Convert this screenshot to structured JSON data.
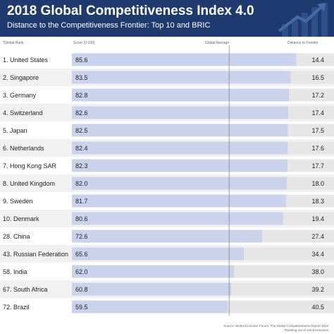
{
  "header": {
    "title": "2018 Global Competitiveness Index 4.0",
    "subtitle": "Distance to the Competitiveness Frontier: Top 10 and BRIC"
  },
  "columns": {
    "rank": "*Global Rank",
    "score": "Score (0-100)",
    "average": "Global Average",
    "distance": "Distance to Frontier"
  },
  "footer": {
    "source": "Source: World Economic Forum, The Global Competitiveness Report 2018",
    "note": "*Ranking out of 140 Economies"
  },
  "colors": {
    "header_bg": "#1e3a6e",
    "score_bar": "#c9d4ec",
    "distance_bar": "#e6e6e6",
    "row_alt": "#f1f1f1"
  },
  "chart_data": {
    "type": "bar",
    "orientation": "horizontal",
    "stacked": true,
    "xlim": [
      0,
      100
    ],
    "global_average": 60.0,
    "categories": [
      "1. United States",
      "2. Singapore",
      "3. Germany",
      "4. Switzerland",
      "5. Japan",
      "6. Netherlands",
      "7. Hong Kong SAR",
      "8. United Kingdom",
      "9. Sweden",
      "10. Denmark",
      "28. China",
      "43. Russian Federation",
      "58. India",
      "67. South Africa",
      "72. Brazil"
    ],
    "series": [
      {
        "name": "Score (0-100)",
        "values": [
          85.6,
          83.5,
          82.8,
          82.6,
          82.5,
          82.4,
          82.3,
          82.0,
          81.7,
          80.6,
          72.6,
          65.6,
          62.0,
          60.8,
          59.5
        ]
      },
      {
        "name": "Distance to Frontier",
        "values": [
          14.4,
          16.5,
          17.2,
          17.4,
          17.5,
          17.6,
          17.7,
          18.0,
          18.3,
          19.4,
          27.4,
          34.4,
          38.0,
          39.2,
          40.5
        ]
      }
    ]
  }
}
